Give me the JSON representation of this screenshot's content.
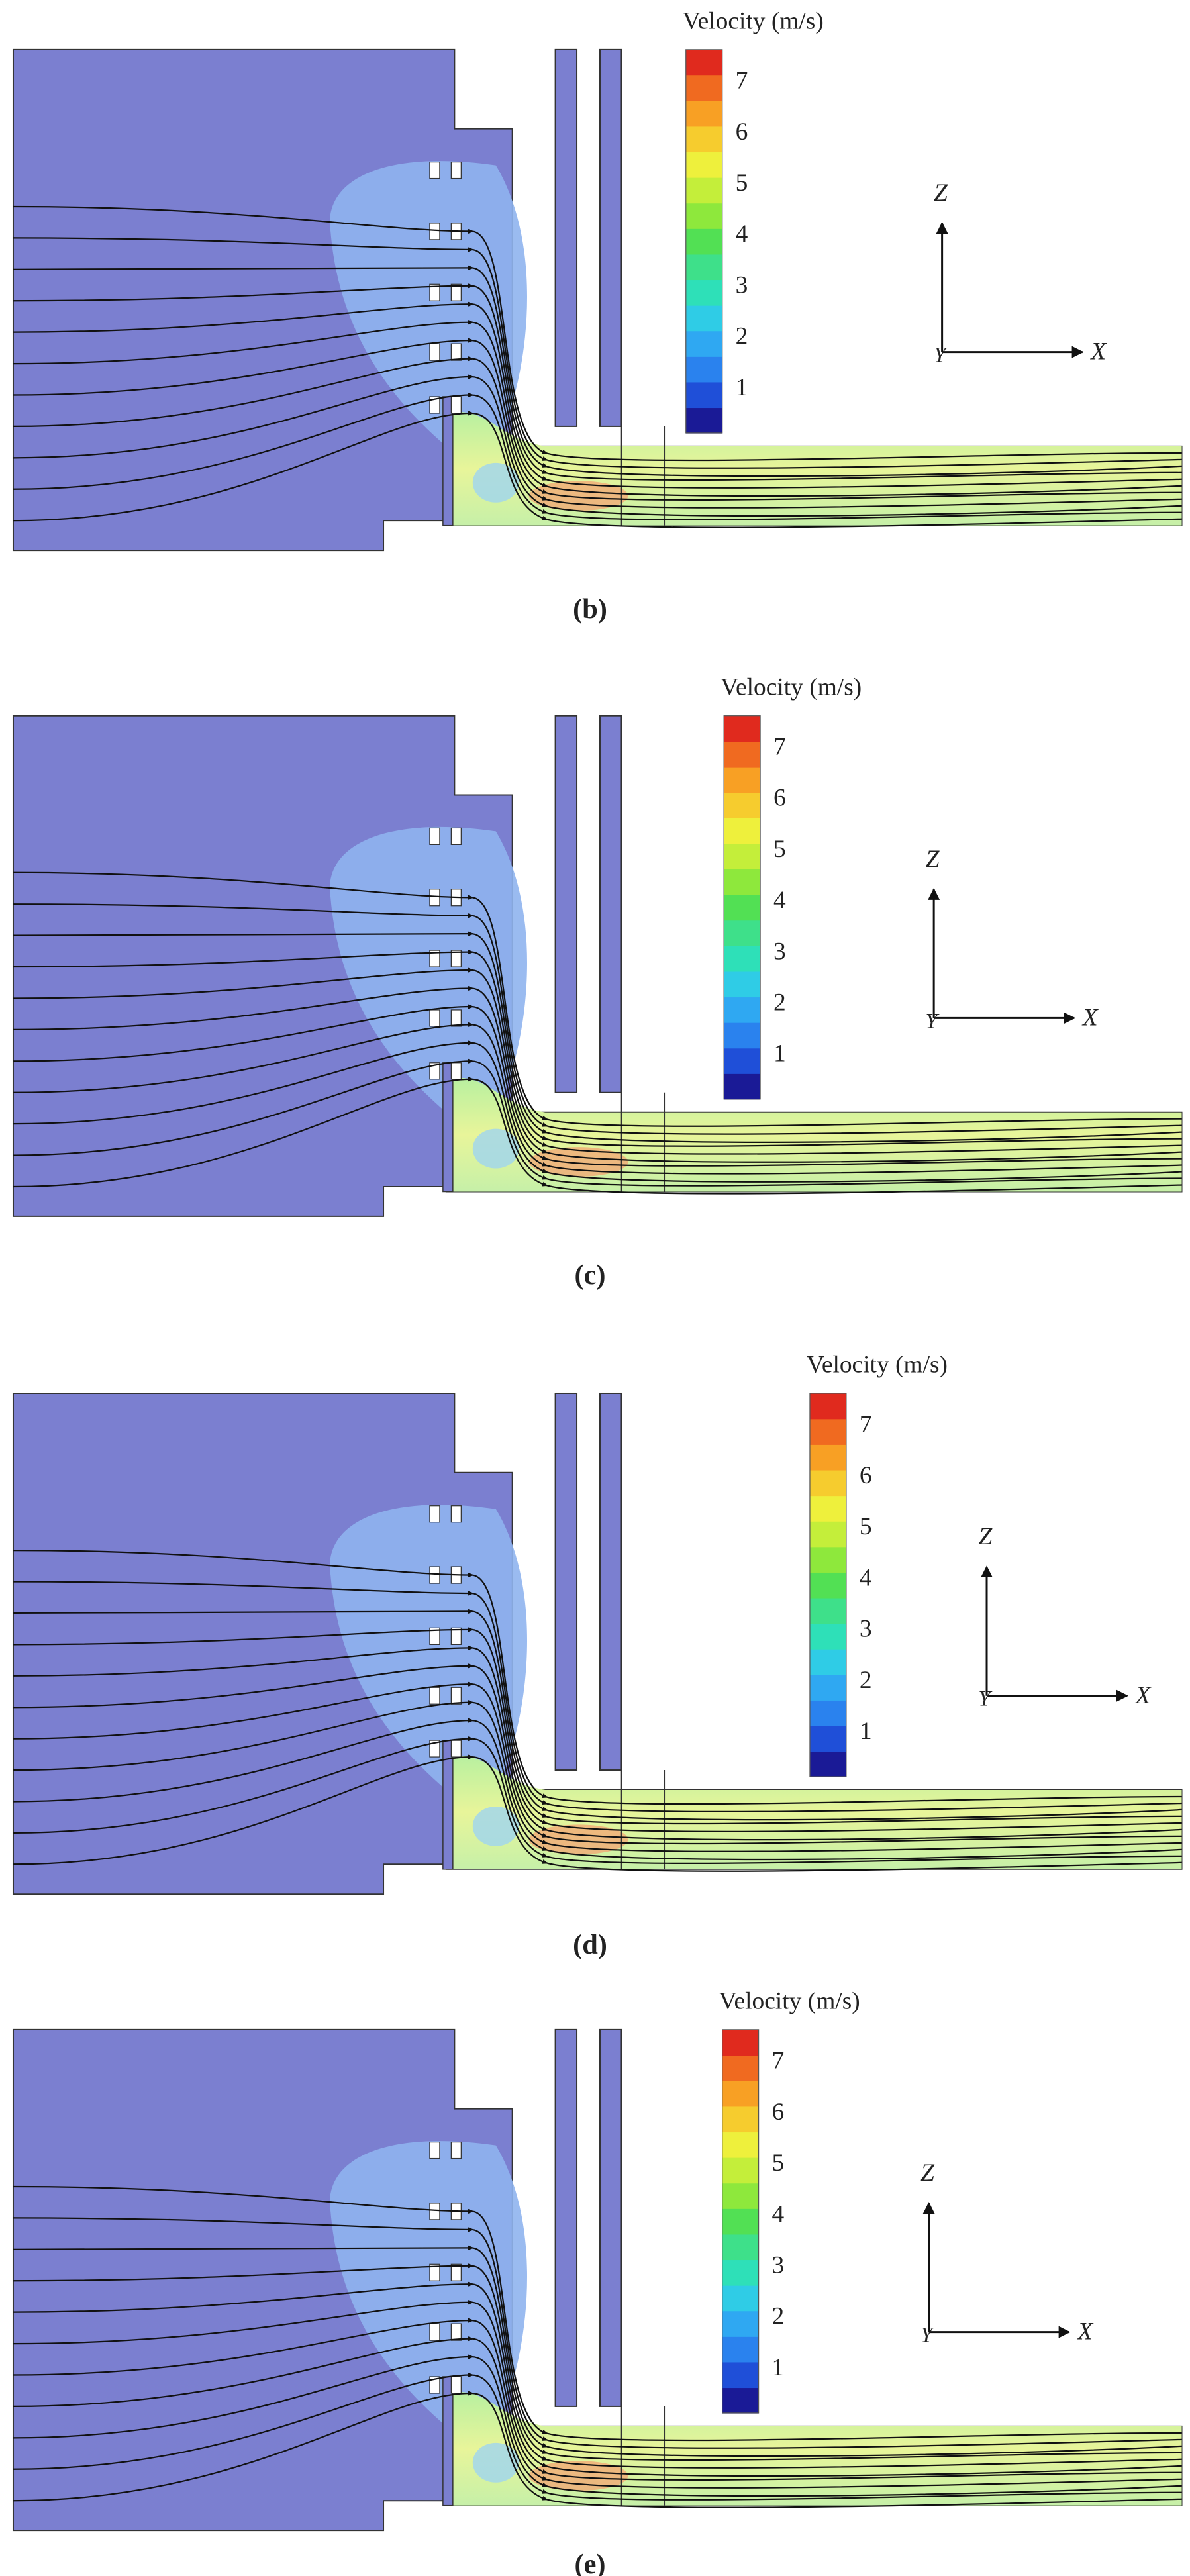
{
  "panels": [
    {
      "label": "(b)",
      "colorbar": {
        "title": "Velocity (m/s)",
        "ticks": [
          1,
          2,
          3,
          4,
          5,
          6,
          7
        ]
      },
      "axes": {
        "z": "Z",
        "x": "X",
        "y": "Y"
      }
    },
    {
      "label": "(c)",
      "colorbar": {
        "title": "Velocity (m/s)",
        "ticks": [
          1,
          2,
          3,
          4,
          5,
          6,
          7
        ]
      },
      "axes": {
        "z": "Z",
        "x": "X",
        "y": "Y"
      }
    },
    {
      "label": "(d)",
      "colorbar": {
        "title": "Velocity (m/s)",
        "ticks": [
          1,
          2,
          3,
          4,
          5,
          6,
          7
        ]
      },
      "axes": {
        "z": "Z",
        "x": "X",
        "y": "Y"
      }
    },
    {
      "label": "(e)",
      "colorbar": {
        "title": "Velocity (m/s)",
        "ticks": [
          1,
          2,
          3,
          4,
          5,
          6,
          7
        ]
      },
      "axes": {
        "z": "Z",
        "x": "X",
        "y": "Y"
      }
    }
  ]
}
